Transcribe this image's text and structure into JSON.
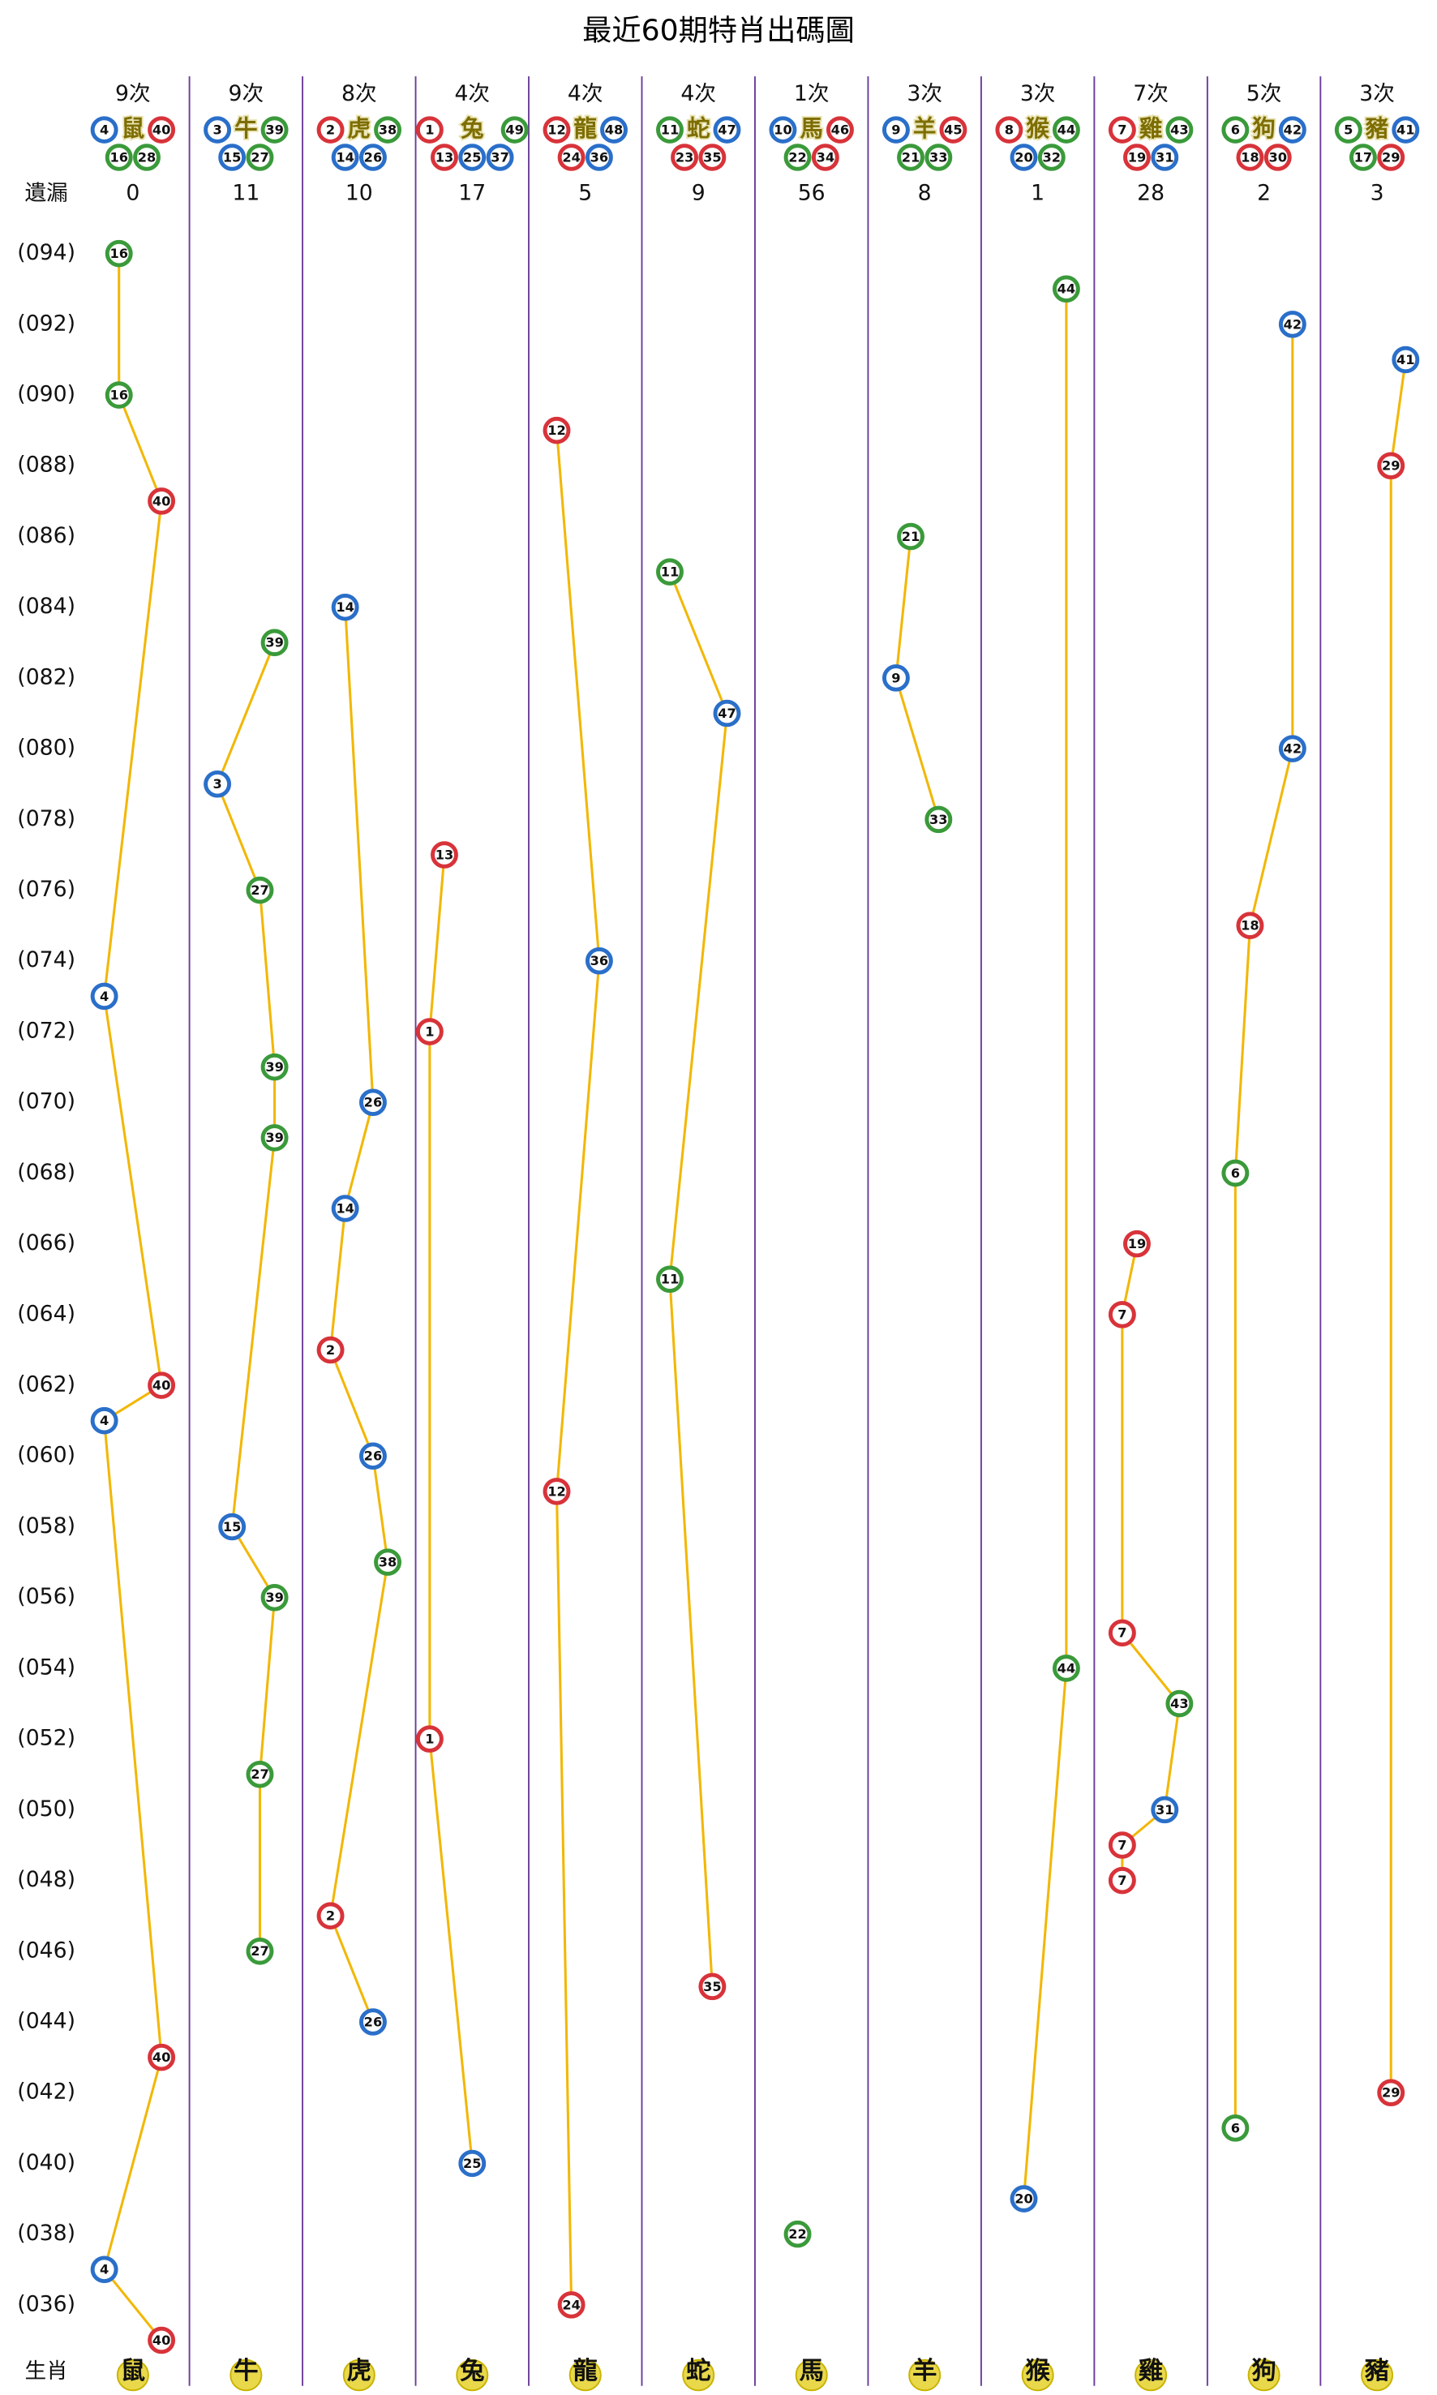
{
  "title": "最近60期特肖出碼圖",
  "miss_label": "遺漏",
  "footer_label": "生肖",
  "columns": [
    {
      "count": "9次",
      "name": "鼠",
      "miss": 0,
      "numbers": [
        {
          "n": 4,
          "color": "#2a6fc9"
        },
        {
          "n": 16,
          "color": "#3a9a3a"
        },
        {
          "n": 28,
          "color": "#3a9a3a"
        },
        {
          "n": 40,
          "color": "#d8333a"
        }
      ]
    },
    {
      "count": "9次",
      "name": "牛",
      "miss": 11,
      "numbers": [
        {
          "n": 3,
          "color": "#2a6fc9"
        },
        {
          "n": 15,
          "color": "#2a6fc9"
        },
        {
          "n": 27,
          "color": "#3a9a3a"
        },
        {
          "n": 39,
          "color": "#3a9a3a"
        }
      ]
    },
    {
      "count": "8次",
      "name": "虎",
      "miss": 10,
      "numbers": [
        {
          "n": 2,
          "color": "#d8333a"
        },
        {
          "n": 14,
          "color": "#2a6fc9"
        },
        {
          "n": 26,
          "color": "#2a6fc9"
        },
        {
          "n": 38,
          "color": "#3a9a3a"
        }
      ]
    },
    {
      "count": "4次",
      "name": "兔",
      "miss": 17,
      "numbers": [
        {
          "n": 1,
          "color": "#d8333a"
        },
        {
          "n": 13,
          "color": "#d8333a"
        },
        {
          "n": 25,
          "color": "#2a6fc9"
        },
        {
          "n": 37,
          "color": "#2a6fc9"
        },
        {
          "n": 49,
          "color": "#3a9a3a"
        }
      ]
    },
    {
      "count": "4次",
      "name": "龍",
      "miss": 5,
      "numbers": [
        {
          "n": 12,
          "color": "#d8333a"
        },
        {
          "n": 24,
          "color": "#d8333a"
        },
        {
          "n": 36,
          "color": "#2a6fc9"
        },
        {
          "n": 48,
          "color": "#2a6fc9"
        }
      ]
    },
    {
      "count": "4次",
      "name": "蛇",
      "miss": 9,
      "numbers": [
        {
          "n": 11,
          "color": "#3a9a3a"
        },
        {
          "n": 23,
          "color": "#d8333a"
        },
        {
          "n": 35,
          "color": "#d8333a"
        },
        {
          "n": 47,
          "color": "#2a6fc9"
        }
      ]
    },
    {
      "count": "1次",
      "name": "馬",
      "miss": 56,
      "numbers": [
        {
          "n": 10,
          "color": "#2a6fc9"
        },
        {
          "n": 22,
          "color": "#3a9a3a"
        },
        {
          "n": 34,
          "color": "#d8333a"
        },
        {
          "n": 46,
          "color": "#d8333a"
        }
      ]
    },
    {
      "count": "3次",
      "name": "羊",
      "miss": 8,
      "numbers": [
        {
          "n": 9,
          "color": "#2a6fc9"
        },
        {
          "n": 21,
          "color": "#3a9a3a"
        },
        {
          "n": 33,
          "color": "#3a9a3a"
        },
        {
          "n": 45,
          "color": "#d8333a"
        }
      ]
    },
    {
      "count": "3次",
      "name": "猴",
      "miss": 1,
      "numbers": [
        {
          "n": 8,
          "color": "#d8333a"
        },
        {
          "n": 20,
          "color": "#2a6fc9"
        },
        {
          "n": 32,
          "color": "#3a9a3a"
        },
        {
          "n": 44,
          "color": "#3a9a3a"
        }
      ]
    },
    {
      "count": "7次",
      "name": "雞",
      "miss": 28,
      "numbers": [
        {
          "n": 7,
          "color": "#d8333a"
        },
        {
          "n": 19,
          "color": "#d8333a"
        },
        {
          "n": 31,
          "color": "#2a6fc9"
        },
        {
          "n": 43,
          "color": "#3a9a3a"
        }
      ]
    },
    {
      "count": "5次",
      "name": "狗",
      "miss": 2,
      "numbers": [
        {
          "n": 6,
          "color": "#3a9a3a"
        },
        {
          "n": 18,
          "color": "#d8333a"
        },
        {
          "n": 30,
          "color": "#d8333a"
        },
        {
          "n": 42,
          "color": "#2a6fc9"
        }
      ]
    },
    {
      "count": "3次",
      "name": "豬",
      "miss": 3,
      "numbers": [
        {
          "n": 5,
          "color": "#3a9a3a"
        },
        {
          "n": 17,
          "color": "#3a9a3a"
        },
        {
          "n": 29,
          "color": "#d8333a"
        },
        {
          "n": 41,
          "color": "#2a6fc9"
        }
      ]
    }
  ],
  "periods": [
    "(094)",
    "(092)",
    "(090)",
    "(088)",
    "(086)",
    "(084)",
    "(082)",
    "(080)",
    "(078)",
    "(076)",
    "(074)",
    "(072)",
    "(070)",
    "(068)",
    "(066)",
    "(064)",
    "(062)",
    "(060)",
    "(058)",
    "(056)",
    "(054)",
    "(052)",
    "(050)",
    "(048)",
    "(046)",
    "(044)",
    "(042)",
    "(040)",
    "(038)",
    "(036)"
  ],
  "draws": [
    16,
    44,
    42,
    41,
    16,
    12,
    29,
    40,
    21,
    11,
    14,
    39,
    9,
    47,
    42,
    3,
    33,
    13,
    27,
    18,
    36,
    4,
    1,
    39,
    26,
    39,
    6,
    14,
    19,
    11,
    7,
    2,
    40,
    4,
    26,
    12,
    15,
    38,
    39,
    7,
    44,
    43,
    1,
    27,
    31,
    7,
    7,
    2,
    27,
    35,
    26,
    40,
    29,
    6,
    25,
    20,
    22,
    4,
    24,
    40
  ]
}
